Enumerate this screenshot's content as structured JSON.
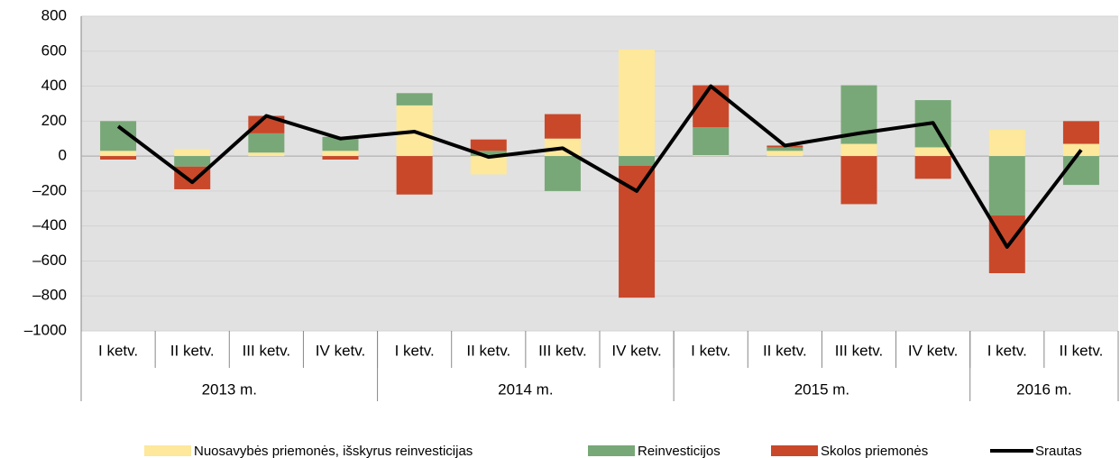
{
  "chart_data": {
    "type": "bar",
    "categories": [
      "I ketv.",
      "II ketv.",
      "III ketv.",
      "IV ketv.",
      "I ketv.",
      "II ketv.",
      "III ketv.",
      "IV ketv.",
      "I ketv.",
      "II ketv.",
      "III ketv.",
      "IV ketv.",
      "I ketv.",
      "II ketv."
    ],
    "groups": [
      {
        "label": "2013 m.",
        "span": 4
      },
      {
        "label": "2014 m.",
        "span": 4
      },
      {
        "label": "2015 m.",
        "span": 4
      },
      {
        "label": "2016 m.",
        "span": 2
      }
    ],
    "series": [
      {
        "name": "Nuosavybės priemonės, išskyrus reinvesticijas",
        "color": "#fde89b",
        "values": [
          30,
          40,
          20,
          30,
          290,
          -105,
          100,
          610,
          5,
          30,
          70,
          50,
          150,
          70
        ]
      },
      {
        "name": "Reinvesticijos",
        "color": "#78a877",
        "values": [
          170,
          -60,
          110,
          80,
          70,
          30,
          -200,
          -55,
          160,
          20,
          335,
          270,
          -340,
          -165
        ]
      },
      {
        "name": "Skolos priemonės",
        "color": "#c9482a",
        "values": [
          -20,
          -130,
          100,
          -20,
          -220,
          65,
          140,
          -755,
          240,
          10,
          -275,
          -130,
          -330,
          130
        ]
      }
    ],
    "line_series": {
      "name": "Srautas",
      "color": "#000000",
      "values": [
        170,
        -150,
        230,
        100,
        140,
        -5,
        45,
        -200,
        400,
        60,
        130,
        190,
        -520,
        35
      ]
    },
    "ylim": [
      -1000,
      800
    ],
    "yticks": [
      {
        "value": -1000,
        "label": "–1000"
      },
      {
        "value": -800,
        "label": "–800"
      },
      {
        "value": -600,
        "label": "–600"
      },
      {
        "value": -400,
        "label": "–400"
      },
      {
        "value": -200,
        "label": "–200"
      },
      0,
      200,
      400,
      600,
      800
    ],
    "grid": true
  }
}
